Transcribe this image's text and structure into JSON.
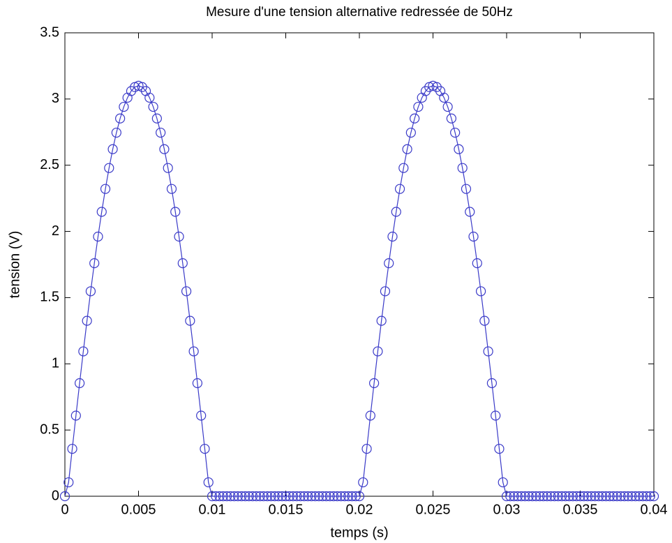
{
  "chart_data": {
    "type": "line",
    "title": "Mesure d'une tension alternative redressée de 50Hz",
    "x_label": "temps (s)",
    "y_label": "tension (V)",
    "xlim": [
      0,
      0.04
    ],
    "xticks": [
      0,
      0.005,
      0.01,
      0.015,
      0.02,
      0.025,
      0.03,
      0.035,
      0.04
    ],
    "ylim": [
      0,
      3.5
    ],
    "yticks": [
      0,
      0.5,
      1,
      1.5,
      2,
      2.5,
      3,
      3.5
    ],
    "marker": "circle",
    "series": [
      {
        "color": "#3a3ac8",
        "x": [
          0,
          0.00025,
          0.0005,
          0.00075,
          0.001,
          0.00125,
          0.0015,
          0.00175,
          0.002,
          0.00225,
          0.0025,
          0.00275,
          0.003,
          0.00325,
          0.0035,
          0.00375,
          0.004,
          0.00425,
          0.0045,
          0.00475,
          0.005,
          0.00525,
          0.0055,
          0.00575,
          0.006,
          0.00625,
          0.0065,
          0.00675,
          0.007,
          0.00725,
          0.0075,
          0.00775,
          0.008,
          0.00825,
          0.0085,
          0.00875,
          0.009,
          0.00925,
          0.0095,
          0.00975,
          0.01,
          0.01025,
          0.0105,
          0.01075,
          0.011,
          0.01125,
          0.0115,
          0.01175,
          0.012,
          0.01225,
          0.0125,
          0.01275,
          0.013,
          0.01325,
          0.0135,
          0.01375,
          0.014,
          0.01425,
          0.0145,
          0.01475,
          0.015,
          0.01525,
          0.0155,
          0.01575,
          0.016,
          0.01625,
          0.0165,
          0.01675,
          0.017,
          0.01725,
          0.0175,
          0.01775,
          0.018,
          0.01825,
          0.0185,
          0.01875,
          0.019,
          0.01925,
          0.0195,
          0.01975,
          0.02,
          0.02025,
          0.0205,
          0.02075,
          0.021,
          0.02125,
          0.0215,
          0.02175,
          0.022,
          0.02225,
          0.0225,
          0.02275,
          0.023,
          0.02325,
          0.0235,
          0.02375,
          0.024,
          0.02425,
          0.0245,
          0.02475,
          0.025,
          0.02525,
          0.0255,
          0.02575,
          0.026,
          0.02625,
          0.0265,
          0.02675,
          0.027,
          0.02725,
          0.0275,
          0.02775,
          0.028,
          0.02825,
          0.0285,
          0.02875,
          0.029,
          0.02925,
          0.0295,
          0.02975,
          0.03,
          0.03025,
          0.0305,
          0.03075,
          0.031,
          0.03125,
          0.0315,
          0.03175,
          0.032,
          0.03225,
          0.0325,
          0.03275,
          0.033,
          0.03325,
          0.0335,
          0.03375,
          0.034,
          0.03425,
          0.0345,
          0.03475,
          0.035,
          0.03525,
          0.0355,
          0.03575,
          0.036,
          0.03625,
          0.0365,
          0.03675,
          0.037,
          0.03725,
          0.0375,
          0.03775,
          0.038,
          0.03825,
          0.0385,
          0.03875,
          0.039,
          0.03925,
          0.0395,
          0.03975,
          0.04
        ],
        "values": [
          0,
          0.105,
          0.358,
          0.609,
          0.854,
          1.094,
          1.325,
          1.548,
          1.76,
          1.961,
          2.148,
          2.321,
          2.479,
          2.621,
          2.746,
          2.853,
          2.941,
          3.01,
          3.06,
          3.09,
          3.1,
          3.09,
          3.06,
          3.01,
          2.941,
          2.853,
          2.746,
          2.621,
          2.479,
          2.321,
          2.148,
          1.961,
          1.76,
          1.548,
          1.325,
          1.094,
          0.854,
          0.609,
          0.358,
          0.105,
          0,
          0,
          0,
          0,
          0,
          0,
          0,
          0,
          0,
          0,
          0,
          0,
          0,
          0,
          0,
          0,
          0,
          0,
          0,
          0,
          0,
          0,
          0,
          0,
          0,
          0,
          0,
          0,
          0,
          0,
          0,
          0,
          0,
          0,
          0,
          0,
          0,
          0,
          0,
          0,
          0,
          0.105,
          0.358,
          0.609,
          0.854,
          1.094,
          1.325,
          1.548,
          1.76,
          1.961,
          2.148,
          2.321,
          2.479,
          2.621,
          2.746,
          2.853,
          2.941,
          3.01,
          3.06,
          3.09,
          3.1,
          3.09,
          3.06,
          3.01,
          2.941,
          2.853,
          2.746,
          2.621,
          2.479,
          2.321,
          2.148,
          1.961,
          1.76,
          1.548,
          1.325,
          1.094,
          0.854,
          0.609,
          0.358,
          0.105,
          0,
          0,
          0,
          0,
          0,
          0,
          0,
          0,
          0,
          0,
          0,
          0,
          0,
          0,
          0,
          0,
          0,
          0,
          0,
          0,
          0,
          0,
          0,
          0,
          0,
          0,
          0,
          0,
          0,
          0,
          0,
          0,
          0,
          0,
          0,
          0,
          0,
          0,
          0,
          0,
          0
        ]
      }
    ]
  }
}
